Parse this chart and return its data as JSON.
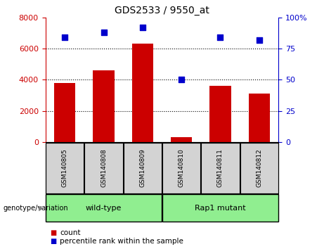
{
  "title": "GDS2533 / 9550_at",
  "samples": [
    "GSM140805",
    "GSM140808",
    "GSM140809",
    "GSM140810",
    "GSM140811",
    "GSM140812"
  ],
  "counts": [
    3800,
    4600,
    6300,
    300,
    3600,
    3100
  ],
  "percentiles": [
    84,
    88,
    92,
    50,
    84,
    82
  ],
  "bar_color": "#CC0000",
  "dot_color": "#0000CC",
  "left_ylim": [
    0,
    8000
  ],
  "right_ylim": [
    0,
    100
  ],
  "left_yticks": [
    0,
    2000,
    4000,
    6000,
    8000
  ],
  "right_yticks": [
    0,
    25,
    50,
    75,
    100
  ],
  "right_yticklabels": [
    "0",
    "25",
    "50",
    "75",
    "100%"
  ],
  "grid_values": [
    2000,
    4000,
    6000
  ],
  "legend_count_label": "count",
  "legend_pct_label": "percentile rank within the sample",
  "tick_area_color": "#d3d3d3",
  "group_bar_color": "#90EE90",
  "group_label_prefix": "genotype/variation",
  "groups": [
    {
      "label": "wild-type",
      "start": 0,
      "end": 2
    },
    {
      "label": "Rap1 mutant",
      "start": 3,
      "end": 5
    }
  ]
}
